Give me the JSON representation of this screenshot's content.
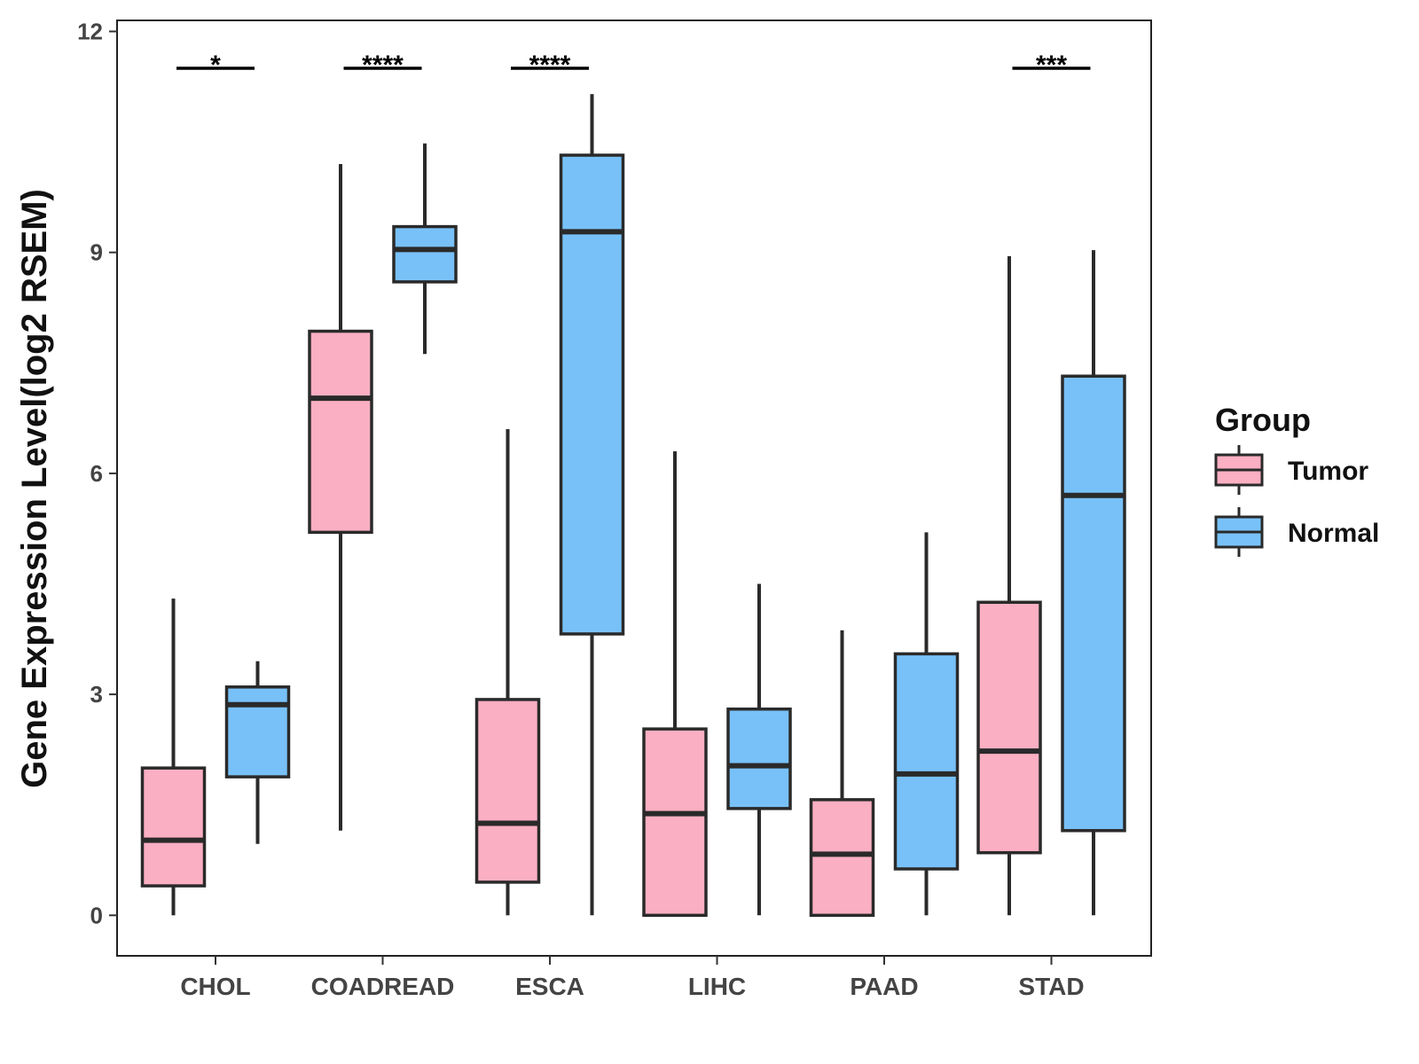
{
  "chart_data": {
    "type": "boxplot",
    "title": "",
    "xlabel": "",
    "ylabel": "Gene Expression Level(log2 RSEM)",
    "ylim": [
      -0.55,
      12.15
    ],
    "yticks": [
      0,
      3,
      6,
      9,
      12
    ],
    "ytick_labels": [
      "0",
      "3",
      "6",
      "9",
      "12"
    ],
    "categories": [
      "CHOL",
      "COADREAD",
      "ESCA",
      "LIHC",
      "PAAD",
      "STAD"
    ],
    "legend": {
      "title": "Group",
      "position": "right",
      "entries": [
        "Tumor",
        "Normal"
      ]
    },
    "colors": {
      "Tumor": "#fbafc2",
      "Normal": "#78c1f8",
      "outline": "#2a2a2a"
    },
    "series": [
      {
        "name": "Tumor",
        "boxes": [
          {
            "min": 0,
            "q1": 0.4,
            "median": 1.02,
            "q3": 2.0,
            "max": 4.3
          },
          {
            "min": 1.15,
            "q1": 5.2,
            "median": 7.02,
            "q3": 7.93,
            "max": 10.2
          },
          {
            "min": 0,
            "q1": 0.45,
            "median": 1.25,
            "q3": 2.93,
            "max": 6.6
          },
          {
            "min": 0,
            "q1": 0,
            "median": 1.38,
            "q3": 2.53,
            "max": 6.3
          },
          {
            "min": 0,
            "q1": 0,
            "median": 0.83,
            "q3": 1.57,
            "max": 3.87
          },
          {
            "min": 0,
            "q1": 0.85,
            "median": 2.23,
            "q3": 4.25,
            "max": 8.95
          }
        ]
      },
      {
        "name": "Normal",
        "boxes": [
          {
            "min": 0.97,
            "q1": 1.88,
            "median": 2.86,
            "q3": 3.1,
            "max": 3.45
          },
          {
            "min": 7.62,
            "q1": 8.6,
            "median": 9.04,
            "q3": 9.35,
            "max": 10.48
          },
          {
            "min": 0,
            "q1": 3.82,
            "median": 9.28,
            "q3": 10.32,
            "max": 11.15
          },
          {
            "min": 0,
            "q1": 1.45,
            "median": 2.03,
            "q3": 2.8,
            "max": 4.5
          },
          {
            "min": 0,
            "q1": 0.63,
            "median": 1.92,
            "q3": 3.55,
            "max": 5.2
          },
          {
            "min": 0,
            "q1": 1.15,
            "median": 5.7,
            "q3": 7.32,
            "max": 9.03
          }
        ]
      }
    ],
    "significance": [
      {
        "category": "CHOL",
        "label": "*",
        "y": 11.5
      },
      {
        "category": "COADREAD",
        "label": "****",
        "y": 11.5
      },
      {
        "category": "ESCA",
        "label": "****",
        "y": 11.5
      },
      {
        "category": "STAD",
        "label": "***",
        "y": 11.5
      }
    ]
  }
}
